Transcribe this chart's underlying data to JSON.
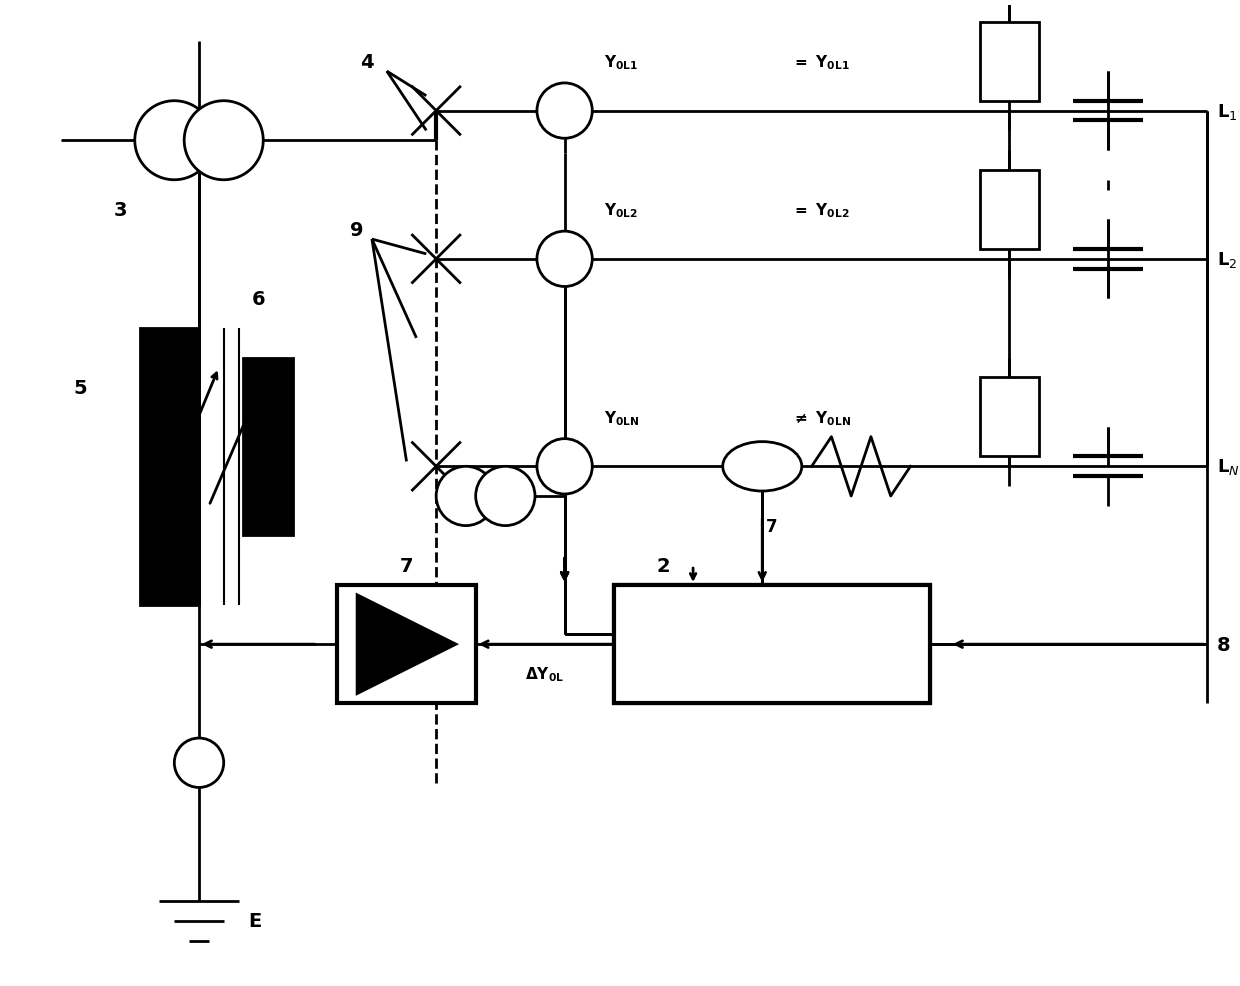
{
  "bg_color": "#ffffff",
  "line_color": "#000000",
  "line_width": 2.0,
  "fig_width": 12.4,
  "fig_height": 9.87,
  "dpi": 100
}
